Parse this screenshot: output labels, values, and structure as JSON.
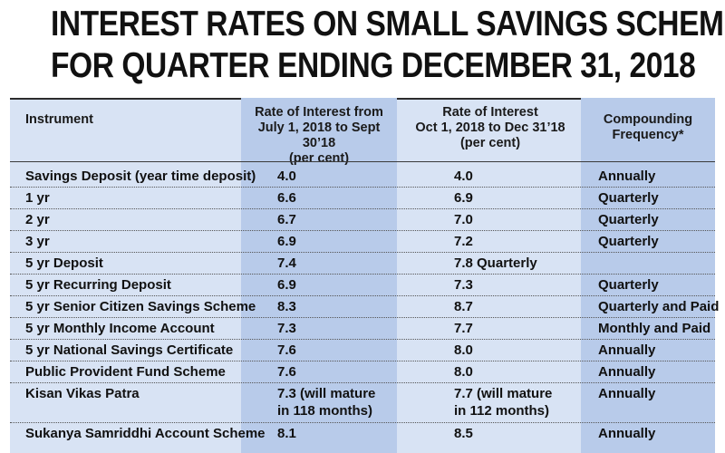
{
  "title": {
    "line1": "INTEREST RATES ON SMALL SAVINGS SCHEME",
    "line2": "FOR QUARTER ENDING DECEMBER 31, 2018"
  },
  "colors": {
    "panel": "#d8e3f4",
    "highlight_column": "#b8cbea",
    "text": "#111111"
  },
  "table": {
    "headers": {
      "instrument": "Instrument",
      "rate_prev": [
        "Rate of Interest from",
        "July 1, 2018 to Sept 30’18",
        "(per cent)"
      ],
      "rate_curr": [
        "Rate of Interest",
        "Oct 1, 2018 to Dec 31’18",
        "(per cent)"
      ],
      "frequency": [
        "Compounding",
        "Frequency*"
      ]
    },
    "rows": [
      {
        "instrument": "Savings Deposit (year time deposit)",
        "rate_prev": [
          "4.0"
        ],
        "rate_curr": [
          "4.0"
        ],
        "frequency": "Annually"
      },
      {
        "instrument": "1 yr",
        "rate_prev": [
          "6.6"
        ],
        "rate_curr": [
          "6.9"
        ],
        "frequency": "Quarterly"
      },
      {
        "instrument": "2 yr",
        "rate_prev": [
          "6.7"
        ],
        "rate_curr": [
          "7.0"
        ],
        "frequency": "Quarterly"
      },
      {
        "instrument": "3 yr",
        "rate_prev": [
          "6.9"
        ],
        "rate_curr": [
          "7.2"
        ],
        "frequency": "Quarterly"
      },
      {
        "instrument": "5 yr Deposit",
        "rate_prev": [
          "7.4"
        ],
        "rate_curr": [
          "7.8 Quarterly"
        ],
        "frequency": ""
      },
      {
        "instrument": "5 yr Recurring Deposit",
        "rate_prev": [
          "6.9"
        ],
        "rate_curr": [
          "7.3"
        ],
        "frequency": "Quarterly"
      },
      {
        "instrument": "5 yr Senior Citizen Savings Scheme",
        "rate_prev": [
          "8.3"
        ],
        "rate_curr": [
          "8.7"
        ],
        "frequency": "Quarterly and Paid"
      },
      {
        "instrument": "5 yr Monthly Income Account",
        "rate_prev": [
          "7.3"
        ],
        "rate_curr": [
          "7.7"
        ],
        "frequency": "Monthly and Paid"
      },
      {
        "instrument": "5 yr National Savings Certificate",
        "rate_prev": [
          "7.6"
        ],
        "rate_curr": [
          "8.0"
        ],
        "frequency": "Annually"
      },
      {
        "instrument": "Public Provident Fund Scheme",
        "rate_prev": [
          "7.6"
        ],
        "rate_curr": [
          "8.0"
        ],
        "frequency": "Annually"
      },
      {
        "instrument": "Kisan Vikas Patra",
        "rate_prev": [
          "7.3 (will mature",
          "in 118 months)"
        ],
        "rate_curr": [
          "7.7 (will mature",
          "in 112 months)"
        ],
        "frequency": "Annually"
      },
      {
        "instrument": "Sukanya Samriddhi Account Scheme",
        "rate_prev": [
          "8.1"
        ],
        "rate_curr": [
          "8.5"
        ],
        "frequency": "Annually"
      }
    ]
  }
}
